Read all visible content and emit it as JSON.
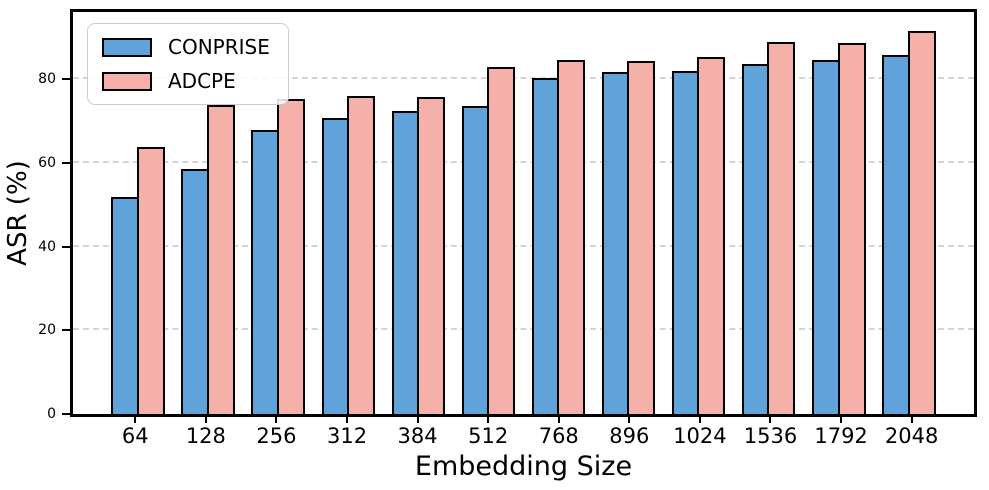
{
  "figure": {
    "ylabel": "ASR (%)",
    "xlabel": "Embedding Size"
  },
  "legend": {
    "items": [
      {
        "label": "CONPRISE",
        "color": "#5fa3da"
      },
      {
        "label": "ADCPE",
        "color": "#f6b0aa"
      }
    ]
  },
  "chart_data": {
    "type": "bar",
    "title": "",
    "xlabel": "Embedding Size",
    "ylabel": "ASR (%)",
    "categories": [
      "64",
      "128",
      "256",
      "312",
      "384",
      "512",
      "768",
      "896",
      "1024",
      "1536",
      "1792",
      "2048"
    ],
    "series": [
      {
        "name": "CONPRISE",
        "color": "#5fa3da",
        "values": [
          51.9,
          58.6,
          67.8,
          70.8,
          72.4,
          73.5,
          80.2,
          81.6,
          82.0,
          83.5,
          84.5,
          85.7
        ]
      },
      {
        "name": "ADCPE",
        "color": "#f6b0aa",
        "values": [
          63.8,
          73.9,
          75.3,
          76.0,
          75.7,
          82.9,
          84.5,
          84.2,
          85.3,
          88.9,
          88.6,
          91.4
        ]
      }
    ],
    "ylim": [
      0,
      96
    ],
    "yticks": [
      0,
      20,
      40,
      60,
      80
    ],
    "grid": true,
    "legend_position": "upper left",
    "bar_edge_color": "#000000",
    "grid_color": "#d4d4d4"
  }
}
